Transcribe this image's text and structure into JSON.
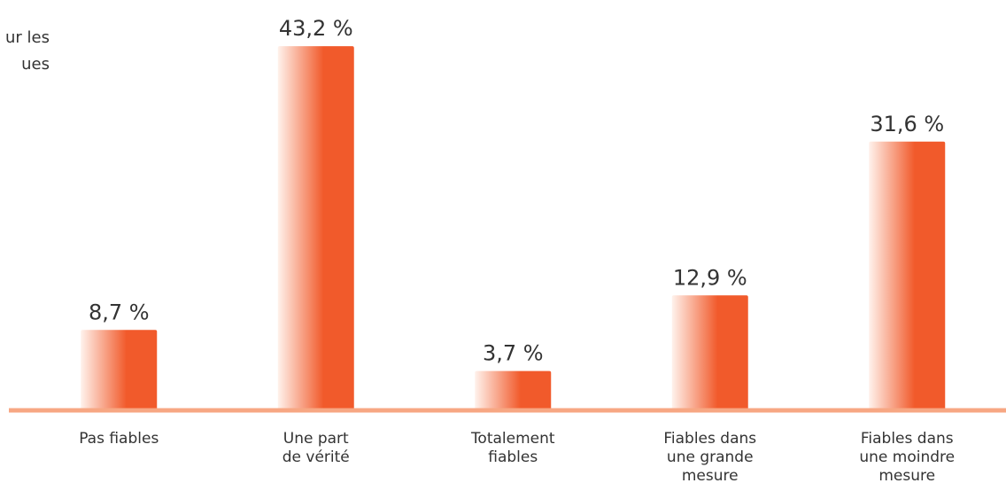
{
  "chart_data": {
    "type": "bar",
    "title_lines": [
      "ur les",
      "ues"
    ],
    "categories": [
      [
        "Pas fiables"
      ],
      [
        "Une part",
        "de vérité"
      ],
      [
        "Totalement",
        "fiables"
      ],
      [
        "Fiables dans",
        "une grande",
        "mesure"
      ],
      [
        "Fiables dans",
        "une moindre",
        "mesure"
      ]
    ],
    "values": [
      8.7,
      43.2,
      3.7,
      12.9,
      31.6
    ],
    "value_labels": [
      "8,7 %",
      "43,2 %",
      "3,7 %",
      "12,9 %",
      "31,6 %"
    ],
    "color": "#f15a2b",
    "ylim": [
      0,
      50
    ]
  }
}
